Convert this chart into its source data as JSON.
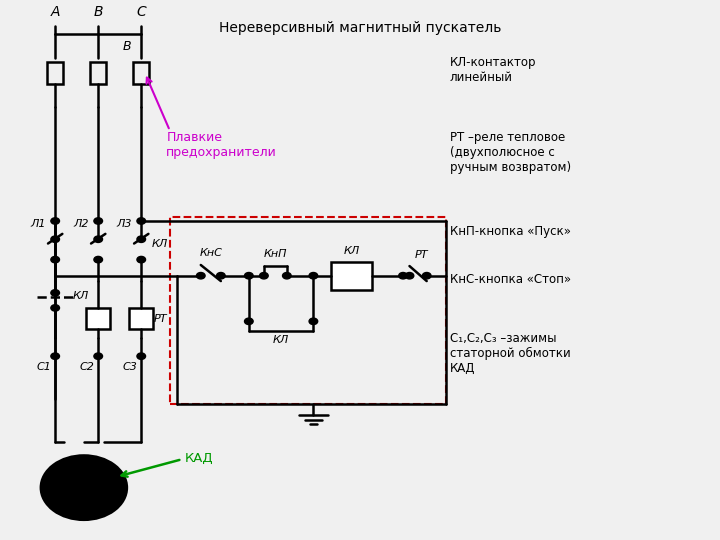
{
  "title": "Нереверсивный магнитный пускатель",
  "background_color": "#f0f0f0",
  "legend_items": [
    "КЛ-контактор\nлинейный",
    "РТ –реле тепловое\n(двухполюсное с\nручным возвратом)",
    "КнП-кнопка «Пуск»",
    "КнС-кнопка «Стоп»",
    "С₁,С₂,С₃ –зажимы\nстаторной обмотки\nКАД"
  ],
  "fuse_color": "#cc00cc",
  "kad_color": "#009900",
  "box_color": "#cc0000",
  "line_color": "#000000"
}
